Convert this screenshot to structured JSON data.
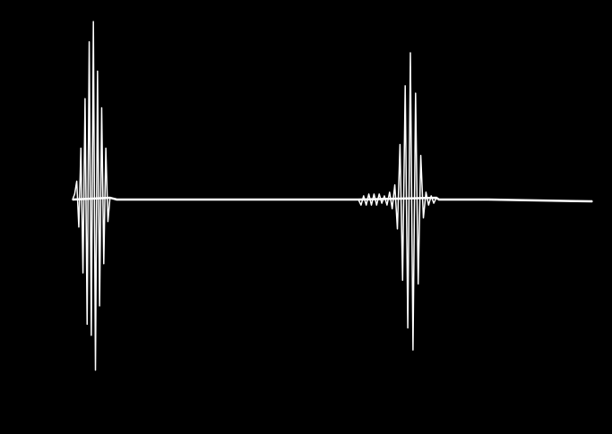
{
  "chart_data": {
    "type": "line",
    "title": "",
    "xlabel": "",
    "ylabel": "",
    "xlim": [
      0,
      1
    ],
    "ylim": [
      -1,
      1
    ],
    "grid": false,
    "legend": "none",
    "background": "#000000",
    "line_color": "#ffffff",
    "series": [
      {
        "values": [
          [
            0.0,
            0.0
          ],
          [
            0.004,
            0.03
          ],
          [
            0.008,
            0.1
          ],
          [
            0.012,
            -0.15
          ],
          [
            0.016,
            0.28
          ],
          [
            0.02,
            -0.4
          ],
          [
            0.024,
            0.55
          ],
          [
            0.028,
            -0.68
          ],
          [
            0.032,
            0.86
          ],
          [
            0.036,
            -0.74
          ],
          [
            0.04,
            0.97
          ],
          [
            0.044,
            -0.93
          ],
          [
            0.048,
            0.7
          ],
          [
            0.052,
            -0.58
          ],
          [
            0.056,
            0.5
          ],
          [
            0.06,
            -0.35
          ],
          [
            0.064,
            0.28
          ],
          [
            0.068,
            -0.12
          ],
          [
            0.072,
            0.01
          ],
          [
            0.085,
            0.0
          ],
          [
            0.2,
            0.0
          ],
          [
            0.4,
            0.0
          ],
          [
            0.55,
            0.0
          ],
          [
            0.555,
            -0.03
          ],
          [
            0.56,
            0.02
          ],
          [
            0.565,
            -0.03
          ],
          [
            0.57,
            0.03
          ],
          [
            0.575,
            -0.03
          ],
          [
            0.58,
            0.03
          ],
          [
            0.585,
            -0.03
          ],
          [
            0.59,
            0.03
          ],
          [
            0.595,
            -0.02
          ],
          [
            0.6,
            0.02
          ],
          [
            0.605,
            -0.03
          ],
          [
            0.61,
            0.04
          ],
          [
            0.615,
            -0.05
          ],
          [
            0.62,
            0.08
          ],
          [
            0.625,
            -0.16
          ],
          [
            0.63,
            0.3
          ],
          [
            0.635,
            -0.44
          ],
          [
            0.64,
            0.62
          ],
          [
            0.645,
            -0.7
          ],
          [
            0.65,
            0.8
          ],
          [
            0.655,
            -0.82
          ],
          [
            0.66,
            0.58
          ],
          [
            0.665,
            -0.46
          ],
          [
            0.67,
            0.24
          ],
          [
            0.675,
            -0.1
          ],
          [
            0.68,
            0.04
          ],
          [
            0.685,
            -0.03
          ],
          [
            0.69,
            0.02
          ],
          [
            0.695,
            -0.02
          ],
          [
            0.7,
            0.01
          ],
          [
            0.705,
            0.0
          ],
          [
            0.8,
            0.0
          ],
          [
            1.0,
            -0.01
          ]
        ]
      }
    ]
  }
}
